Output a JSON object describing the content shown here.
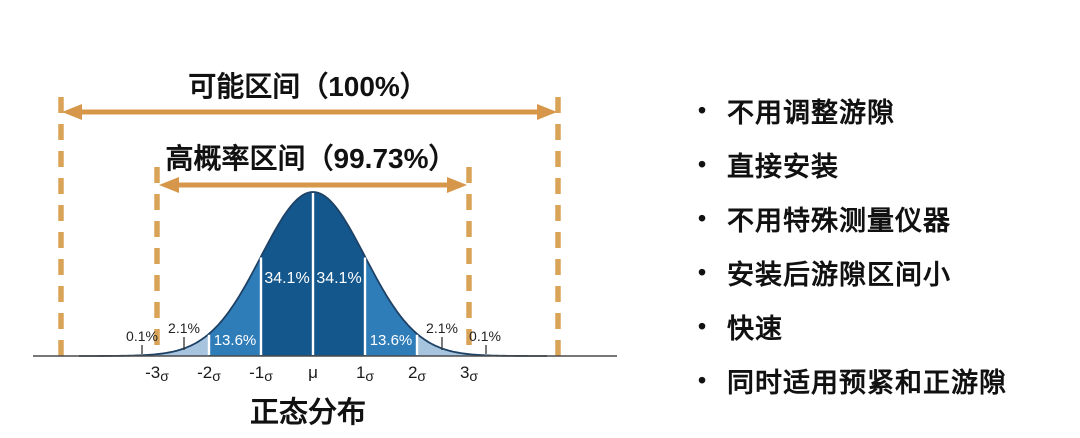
{
  "right_panel": {
    "bullet": "•",
    "items": [
      "不用调整游隙",
      "直接安装",
      "不用特殊测量仪器",
      "安装后游隙区间小",
      "快速",
      "同时适用预紧和正游隙"
    ]
  },
  "chart_data": {
    "type": "area",
    "subtype": "normal-distribution-density",
    "title": "正态分布",
    "x_tick_labels": [
      "-3σ",
      "-2σ",
      "-1σ",
      "μ",
      "1σ",
      "2σ",
      "3σ"
    ],
    "intervals": [
      {
        "label": "可能区间（100%）",
        "coverage_percent": 100
      },
      {
        "label": "高概率区间（99.73%）",
        "coverage_percent": 99.73
      }
    ],
    "segments": [
      {
        "range_sigma": [
          -4.5,
          -3
        ],
        "percent": "0.1%",
        "color": "#b7cadc",
        "label_inside": false
      },
      {
        "range_sigma": [
          -3,
          -2
        ],
        "percent": "2.1%",
        "color": "#a6c4de",
        "label_inside": false
      },
      {
        "range_sigma": [
          -2,
          -1
        ],
        "percent": "13.6%",
        "color": "#2e7cb8",
        "label_inside": true
      },
      {
        "range_sigma": [
          -1,
          0
        ],
        "percent": "34.1%",
        "color": "#14578c",
        "label_inside": true
      },
      {
        "range_sigma": [
          0,
          1
        ],
        "percent": "34.1%",
        "color": "#14578c",
        "label_inside": true
      },
      {
        "range_sigma": [
          1,
          2
        ],
        "percent": "13.6%",
        "color": "#2e7cb8",
        "label_inside": true
      },
      {
        "range_sigma": [
          2,
          3
        ],
        "percent": "2.1%",
        "color": "#a6c4de",
        "label_inside": false
      },
      {
        "range_sigma": [
          3,
          4.5
        ],
        "percent": "0.1%",
        "color": "#b7cadc",
        "label_inside": false
      }
    ],
    "colors": {
      "annotation_orange": "#d79e4f",
      "curve_outline": "#1e4266",
      "divider_white": "#ffffff",
      "axis": "#4a4a4a",
      "label_dark": "#222222",
      "label_light": "#ffffff"
    }
  }
}
